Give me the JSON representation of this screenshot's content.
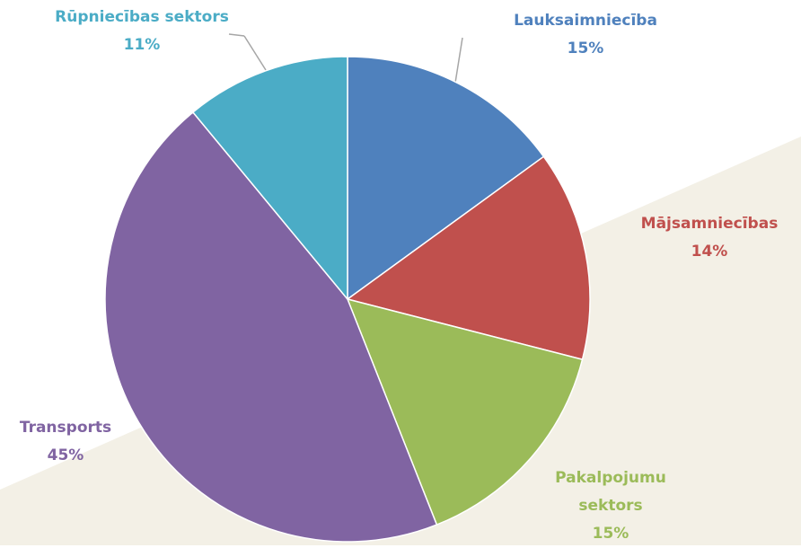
{
  "chart_data": {
    "type": "pie",
    "categories": [
      "Lauksaimniecība",
      "Mājsamniecības",
      "Pakalpojumu sektors",
      "Transports",
      "Rūpniecības sektors"
    ],
    "values": [
      15,
      14,
      15,
      45,
      11
    ],
    "value_labels": [
      "15%",
      "14%",
      "15%",
      "45%",
      "11%"
    ],
    "colors": [
      "#4f81bd",
      "#c0504d",
      "#9bbb59",
      "#8064a2",
      "#4bacc6"
    ]
  }
}
